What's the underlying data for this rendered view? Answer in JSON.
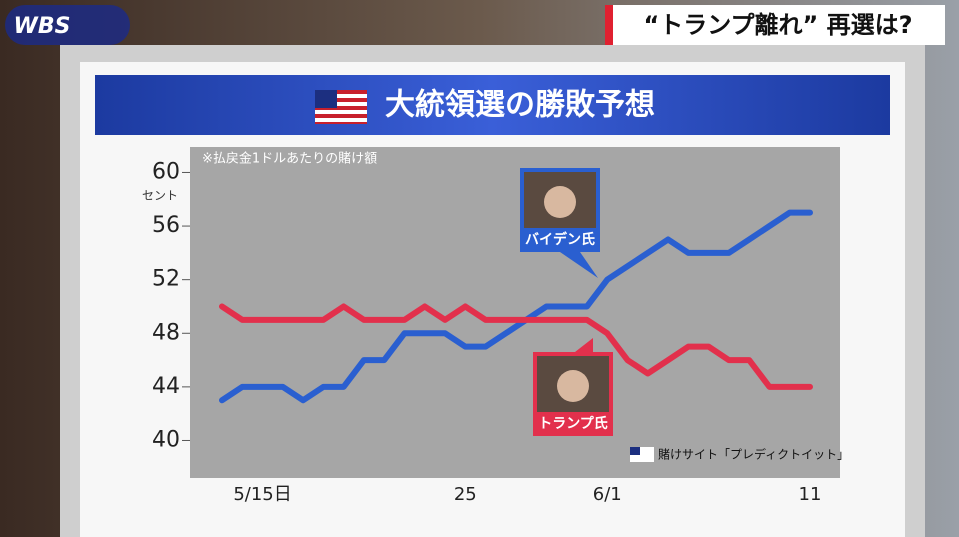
{
  "logo": "WBS",
  "banner": "“トランプ離れ” 再選は?",
  "chart_data": {
    "type": "line",
    "title": "大統領選の勝敗予想",
    "note": "※払戻金1ドルあたりの賭け額",
    "y_unit": "セント",
    "source": "賭けサイト「プレディクトイット」",
    "categories": [
      null,
      null,
      "5/15日",
      null,
      null,
      null,
      null,
      null,
      null,
      null,
      null,
      null,
      "25",
      null,
      null,
      null,
      null,
      null,
      null,
      "6/1",
      null,
      null,
      null,
      null,
      null,
      null,
      null,
      null,
      null,
      "11"
    ],
    "series": [
      {
        "name": "バイデン氏",
        "color": "#2a5fd0",
        "values": [
          43,
          44,
          44,
          44,
          43,
          44,
          44,
          46,
          46,
          48,
          48,
          48,
          47,
          47,
          48,
          49,
          50,
          50,
          50,
          52,
          53,
          54,
          55,
          54,
          54,
          54,
          55,
          56,
          57,
          57
        ]
      },
      {
        "name": "トランプ氏",
        "color": "#e2304c",
        "values": [
          50,
          49,
          49,
          49,
          49,
          49,
          50,
          49,
          49,
          49,
          50,
          49,
          50,
          49,
          49,
          49,
          49,
          49,
          49,
          48,
          46,
          45,
          46,
          47,
          47,
          46,
          46,
          44,
          44,
          44
        ]
      }
    ],
    "ylim": [
      37.2,
      61.9
    ],
    "yticks": [
      40,
      44,
      48,
      52,
      56,
      60
    ]
  }
}
